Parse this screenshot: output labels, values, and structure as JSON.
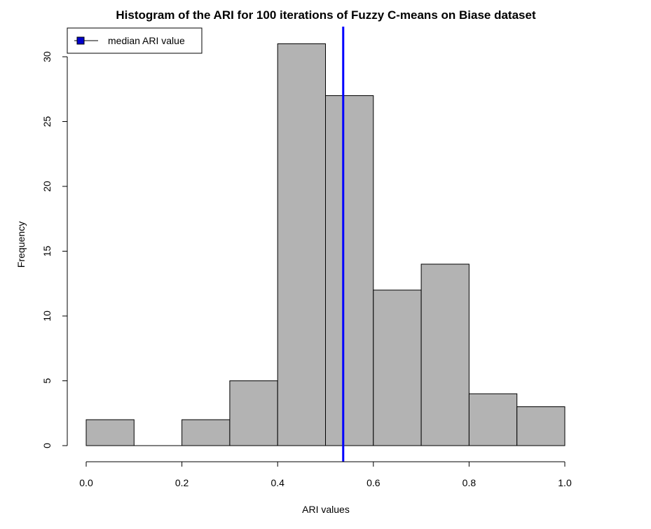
{
  "chart_data": {
    "type": "bar",
    "title": "Histogram of the ARI for 100 iterations of Fuzzy C-means on Biase dataset",
    "xlabel": "ARI values",
    "ylabel": "Frequency",
    "bins": [
      {
        "start": 0.0,
        "end": 0.1,
        "count": 2
      },
      {
        "start": 0.1,
        "end": 0.2,
        "count": 0
      },
      {
        "start": 0.2,
        "end": 0.3,
        "count": 2
      },
      {
        "start": 0.3,
        "end": 0.4,
        "count": 5
      },
      {
        "start": 0.4,
        "end": 0.5,
        "count": 31
      },
      {
        "start": 0.5,
        "end": 0.6,
        "count": 27
      },
      {
        "start": 0.6,
        "end": 0.7,
        "count": 12
      },
      {
        "start": 0.7,
        "end": 0.8,
        "count": 14
      },
      {
        "start": 0.8,
        "end": 0.9,
        "count": 4
      },
      {
        "start": 0.9,
        "end": 1.0,
        "count": 3
      }
    ],
    "x_ticks": [
      "0.0",
      "0.2",
      "0.4",
      "0.6",
      "0.8",
      "1.0"
    ],
    "y_ticks": [
      "0",
      "5",
      "10",
      "15",
      "20",
      "25",
      "30"
    ],
    "xlim": [
      0,
      1
    ],
    "ylim": [
      0,
      31
    ],
    "bar_color": "#b3b3b3",
    "median_ari": 0.537,
    "median_color": "#0000ff",
    "legend": {
      "placement": "top-left",
      "label": "median ARI value",
      "marker_color": "#0000cd"
    },
    "grid": false
  }
}
